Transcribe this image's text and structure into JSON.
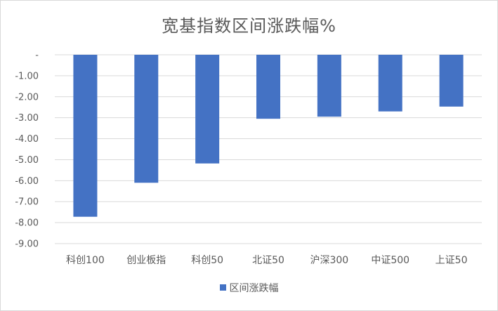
{
  "chart_data": {
    "type": "bar",
    "title": "宽基指数区间涨跌幅%",
    "categories": [
      "科创100",
      "创业板指",
      "科创50",
      "北证50",
      "沪深300",
      "中证500",
      "上证50"
    ],
    "series": [
      {
        "name": "区间涨跌幅",
        "values": [
          -7.72,
          -6.1,
          -5.18,
          -3.05,
          -2.95,
          -2.7,
          -2.47
        ],
        "color": "#4472C4"
      }
    ],
    "yticks": [
      {
        "value": 0,
        "label": "-"
      },
      {
        "value": -1,
        "label": "-1.00"
      },
      {
        "value": -2,
        "label": "-2.00"
      },
      {
        "value": -3,
        "label": "-3.00"
      },
      {
        "value": -4,
        "label": "-4.00"
      },
      {
        "value": -5,
        "label": "-5.00"
      },
      {
        "value": -6,
        "label": "-6.00"
      },
      {
        "value": -7,
        "label": "-7.00"
      },
      {
        "value": -8,
        "label": "-8.00"
      },
      {
        "value": -9,
        "label": "-9.00"
      }
    ],
    "ylim": [
      -9,
      0
    ],
    "grid": true,
    "legend_position": "bottom",
    "gridline_color": "#d9d9d9"
  }
}
